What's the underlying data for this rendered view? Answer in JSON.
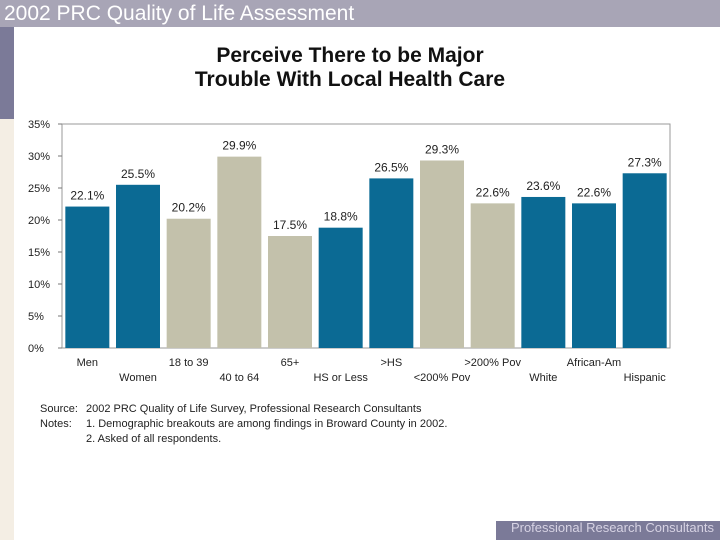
{
  "slide": {
    "title": "2002 PRC Quality of Life Assessment",
    "footer": "Professional Research Consultants"
  },
  "chart_data": {
    "type": "bar",
    "title": "Perceive There to be Major Trouble With Local Health Care",
    "title_lines": [
      "Perceive There to be Major",
      "Trouble With Local Health Care"
    ],
    "categories": [
      "Men",
      "Women",
      "18 to 39",
      "40 to 64",
      "65+",
      "HS or Less",
      ">HS",
      "<200% Pov",
      ">200% Pov",
      "White",
      "African-Am",
      "Hispanic"
    ],
    "values": [
      22.1,
      25.5,
      20.2,
      29.9,
      17.5,
      18.8,
      26.5,
      29.3,
      22.6,
      23.6,
      22.6,
      27.3
    ],
    "value_labels": [
      "22.1%",
      "25.5%",
      "20.2%",
      "29.9%",
      "17.5%",
      "18.8%",
      "26.5%",
      "29.3%",
      "22.6%",
      "23.6%",
      "22.6%",
      "27.3%"
    ],
    "bar_colors": [
      "#0b6a94",
      "#0b6a94",
      "#c3c1ab",
      "#c3c1ab",
      "#c3c1ab",
      "#0b6a94",
      "#0b6a94",
      "#c3c1ab",
      "#c3c1ab",
      "#0b6a94",
      "#0b6a94",
      "#0b6a94"
    ],
    "ylim": [
      0,
      35
    ],
    "y_ticks": [
      0,
      5,
      10,
      15,
      20,
      25,
      30,
      35
    ],
    "y_tick_labels": [
      "0%",
      "5%",
      "10%",
      "15%",
      "20%",
      "25%",
      "30%",
      "35%"
    ],
    "xlabel": "",
    "ylabel": "",
    "grid": false,
    "legend": "none"
  },
  "notes": {
    "source_label": "Source:",
    "source_text": "2002 PRC Quality of Life Survey, Professional Research Consultants",
    "notes_label": "Notes:",
    "note_1": "1. Demographic breakouts are among findings in Broward County in 2002.",
    "note_2": "2. Asked of all respondents."
  }
}
